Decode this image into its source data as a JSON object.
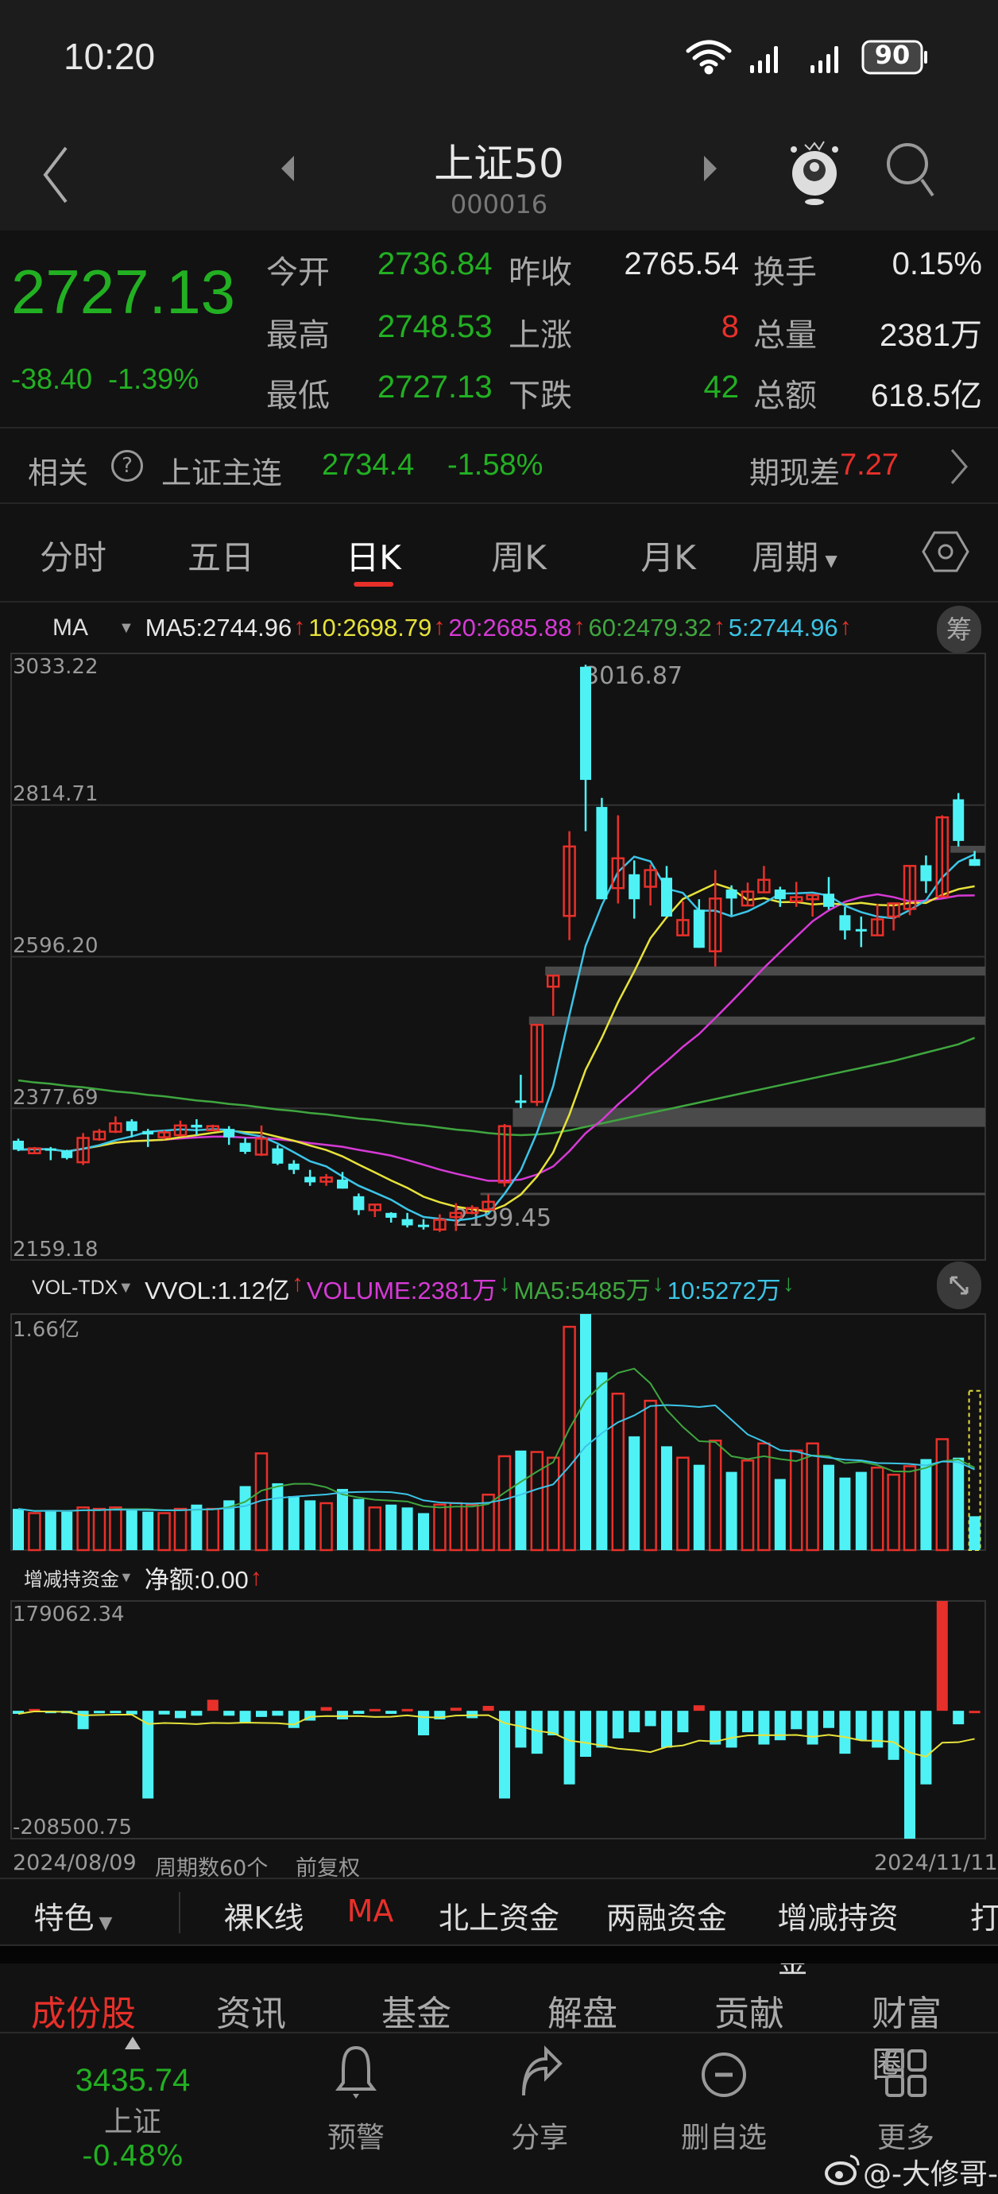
{
  "status": {
    "time": "10:20",
    "battery": "90"
  },
  "header": {
    "title": "上证50",
    "code": "000016"
  },
  "quote": {
    "price": "2727.13",
    "change": "-38.40",
    "change_pct": "-1.39%",
    "stats": [
      {
        "label": "今开",
        "value": "2736.84",
        "tone": "green"
      },
      {
        "label": "昨收",
        "value": "2765.54",
        "tone": "white"
      },
      {
        "label": "换手",
        "value": "0.15%",
        "tone": "white"
      },
      {
        "label": "最高",
        "value": "2748.53",
        "tone": "green"
      },
      {
        "label": "上涨",
        "value": "8",
        "tone": "red"
      },
      {
        "label": "总量",
        "value": "2381万",
        "tone": "white"
      },
      {
        "label": "最低",
        "value": "2727.13",
        "tone": "green"
      },
      {
        "label": "下跌",
        "value": "42",
        "tone": "green"
      },
      {
        "label": "总额",
        "value": "618.5亿",
        "tone": "white"
      }
    ]
  },
  "related": {
    "label": "相关",
    "name": "上证主连",
    "price": "2734.4",
    "pct": "-1.58%",
    "basis_label": "期现差",
    "basis": "7.27"
  },
  "tabs": {
    "items": [
      "分时",
      "五日",
      "日K",
      "周K",
      "月K",
      "周期"
    ],
    "active": "日K"
  },
  "ma_legend": {
    "selector": "MA",
    "items": [
      {
        "text": "MA5:2744.96",
        "color": "#e8e8e8",
        "trend": "↑"
      },
      {
        "text": "10:2698.79",
        "color": "#e6e23a",
        "trend": "↑"
      },
      {
        "text": "20:2685.88",
        "color": "#d63ad6",
        "trend": "↑"
      },
      {
        "text": "60:2479.32",
        "color": "#3fa63f",
        "trend": "↑"
      },
      {
        "text": "5:2744.96",
        "color": "#3cc4e6",
        "trend": "↑"
      }
    ],
    "chip": "筹"
  },
  "vol_legend": {
    "selector": "VOL-TDX",
    "items": [
      {
        "text": "VVOL:1.12亿",
        "color": "#e8e8e8",
        "trend": "↑",
        "trend_color": "#e8302a"
      },
      {
        "text": "VOLUME:2381万",
        "color": "#d63ad6",
        "trend": "↓",
        "trend_color": "#2ea043"
      },
      {
        "text": "MA5:5485万",
        "color": "#3fa63f",
        "trend": "↓",
        "trend_color": "#2ea043"
      },
      {
        "text": "10:5272万",
        "color": "#3cc4e6",
        "trend": "↓",
        "trend_color": "#2ea043"
      }
    ]
  },
  "funds_legend": {
    "selector": "增减持资金",
    "net": "净额:0.00",
    "trend": "↑"
  },
  "footer_info": {
    "start_date": "2024/08/09",
    "periods": "周期数60个",
    "adjust": "前复权",
    "end_date": "2024/11/11"
  },
  "indicator_bar": {
    "menu": "特色",
    "items": [
      "裸K线",
      "MA",
      "北上资金",
      "两融资金",
      "增减持资金",
      "打"
    ],
    "active": "MA"
  },
  "bottom_tabs": {
    "items": [
      "成份股",
      "资讯",
      "基金",
      "解盘",
      "贡献",
      "财富圈"
    ],
    "active": "成份股"
  },
  "bottom_nav": {
    "index_value": "3435.74",
    "index_name": "上证",
    "index_pct": "-0.48%",
    "items": [
      {
        "label": "预警",
        "icon": "bell-icon"
      },
      {
        "label": "分享",
        "icon": "share-icon"
      },
      {
        "label": "删自选",
        "icon": "remove-watchlist-icon"
      },
      {
        "label": "更多",
        "icon": "grid-more-icon"
      }
    ]
  },
  "watermark": "@-大修哥-",
  "colors": {
    "up": "#e8302a",
    "down": "#4ef2f5",
    "green": "#22b022",
    "ma10": "#e6e23a",
    "ma20": "#d63ad6",
    "ma60": "#3fa63f",
    "ma5": "#3cc4e6"
  },
  "chart_data": [
    {
      "type": "candlestick",
      "ylim": [
        2159.18,
        3033.22
      ],
      "yticks": [
        "3033.22",
        "2814.71",
        "2596.20",
        "2377.69",
        "2159.18"
      ],
      "max_label": "3016.87",
      "min_label": "2199.45",
      "ohlc": [
        [
          2331,
          2334,
          2316,
          2318
        ],
        [
          2313,
          2322,
          2312,
          2320
        ],
        [
          2320,
          2322,
          2303,
          2318
        ],
        [
          2317,
          2318,
          2304,
          2306
        ],
        [
          2300,
          2342,
          2296,
          2335
        ],
        [
          2333,
          2348,
          2331,
          2344
        ],
        [
          2344,
          2366,
          2342,
          2356
        ],
        [
          2359,
          2362,
          2336,
          2345
        ],
        [
          2345,
          2348,
          2322,
          2340
        ],
        [
          2336,
          2346,
          2333,
          2343
        ],
        [
          2339,
          2360,
          2337,
          2353
        ],
        [
          2354,
          2362,
          2339,
          2350
        ],
        [
          2346,
          2354,
          2345,
          2352
        ],
        [
          2348,
          2352,
          2325,
          2336
        ],
        [
          2328,
          2335,
          2312,
          2315
        ],
        [
          2311,
          2353,
          2309,
          2334
        ],
        [
          2320,
          2325,
          2296,
          2298
        ],
        [
          2298,
          2303,
          2283,
          2289
        ],
        [
          2279,
          2289,
          2266,
          2271
        ],
        [
          2272,
          2283,
          2266,
          2278
        ],
        [
          2275,
          2286,
          2262,
          2262
        ],
        [
          2251,
          2255,
          2224,
          2231
        ],
        [
          2231,
          2240,
          2221,
          2239
        ],
        [
          2227,
          2228,
          2213,
          2220
        ],
        [
          2218,
          2227,
          2206,
          2209
        ],
        [
          2210,
          2218,
          2203,
          2207
        ],
        [
          2203,
          2225,
          2199.45,
          2217
        ],
        [
          2221,
          2241,
          2201,
          2227
        ],
        [
          2227,
          2238,
          2225,
          2234
        ],
        [
          2232,
          2254,
          2231,
          2243
        ],
        [
          2271,
          2355,
          2265,
          2352
        ],
        [
          2389,
          2426,
          2378,
          2386
        ],
        [
          2387,
          2498,
          2381,
          2498
        ],
        [
          2553,
          2569,
          2511,
          2569
        ],
        [
          2655,
          2777,
          2620,
          2755
        ],
        [
          3014,
          3016.87,
          2777,
          2851
        ],
        [
          2812,
          2825,
          2679,
          2679
        ],
        [
          2695,
          2800,
          2673,
          2738
        ],
        [
          2715,
          2735,
          2651,
          2679
        ],
        [
          2697,
          2729,
          2670,
          2721
        ],
        [
          2710,
          2727,
          2654,
          2654
        ],
        [
          2627,
          2676,
          2627,
          2649
        ],
        [
          2664,
          2679,
          2609,
          2609
        ],
        [
          2604,
          2721,
          2582,
          2680
        ],
        [
          2693,
          2699,
          2656,
          2680
        ],
        [
          2670,
          2703,
          2670,
          2690
        ],
        [
          2689,
          2727,
          2689,
          2707
        ],
        [
          2693,
          2697,
          2668,
          2679
        ],
        [
          2676,
          2704,
          2668,
          2682
        ],
        [
          2679,
          2685,
          2654,
          2685
        ],
        [
          2687,
          2711,
          2664,
          2668
        ],
        [
          2656,
          2668,
          2621,
          2634
        ],
        [
          2636,
          2654,
          2610,
          2633
        ],
        [
          2627,
          2672,
          2627,
          2650
        ],
        [
          2654,
          2673,
          2634,
          2673
        ],
        [
          2665,
          2727,
          2656,
          2727
        ],
        [
          2728,
          2742,
          2688,
          2705
        ],
        [
          2683,
          2800,
          2683,
          2797
        ],
        [
          2823,
          2832,
          2755,
          2763
        ],
        [
          2736.84,
          2748.53,
          2727.13,
          2727.13
        ]
      ],
      "ma60": [
        2418,
        2415,
        2413,
        2410,
        2408,
        2405,
        2402,
        2400,
        2397,
        2395,
        2392,
        2389,
        2387,
        2384,
        2382,
        2379,
        2376,
        2374,
        2371,
        2369,
        2366,
        2363,
        2361,
        2358,
        2355,
        2353,
        2350,
        2347,
        2345,
        2342,
        2340,
        2339,
        2340,
        2342,
        2346,
        2351,
        2356,
        2361,
        2366,
        2371,
        2376,
        2381,
        2386,
        2391,
        2396,
        2401,
        2406,
        2411,
        2416,
        2421,
        2426,
        2431,
        2436,
        2441,
        2446,
        2452,
        2458,
        2464,
        2470,
        2479.32
      ],
      "zones": [
        [
          2569,
          2582,
          33
        ],
        [
          2498,
          2510,
          32
        ],
        [
          2351,
          2378,
          31
        ],
        [
          2746,
          2756,
          58
        ],
        [
          2254,
          2256,
          29
        ]
      ]
    },
    {
      "type": "bar",
      "unit": "万",
      "ymax_label": "1.66亿",
      "ylim": [
        0,
        16600
      ],
      "values": [
        2900,
        2600,
        2800,
        2700,
        3000,
        2900,
        3000,
        2800,
        2700,
        2600,
        2900,
        3200,
        2900,
        3500,
        4500,
        6800,
        4700,
        3800,
        3500,
        3300,
        4300,
        3600,
        3000,
        3200,
        3000,
        2600,
        3200,
        3300,
        3200,
        3900,
        6600,
        7000,
        6900,
        6500,
        15700,
        16600,
        12500,
        11000,
        8000,
        10500,
        7300,
        6500,
        6000,
        7700,
        5500,
        6300,
        7500,
        5000,
        7000,
        7500,
        6000,
        5100,
        5500,
        5800,
        5300,
        5900,
        6400,
        7800,
        6500,
        2381
      ],
      "projected_last": 11200
    },
    {
      "type": "bar",
      "ylim": [
        -208500.75,
        179062.34
      ],
      "yticks": [
        "179062.34",
        "-208500.75"
      ],
      "values": [
        -5000,
        3000,
        -2000,
        -3000,
        -30000,
        -4000,
        -3000,
        -6000,
        -143000,
        -6000,
        -12000,
        -8000,
        18000,
        -8000,
        -20000,
        -10000,
        -8000,
        -28000,
        -16000,
        6000,
        -14000,
        -5000,
        3000,
        -5000,
        3000,
        -40000,
        -14000,
        5000,
        -12000,
        8000,
        -143000,
        -60000,
        -70000,
        -40000,
        -120000,
        -75000,
        -60000,
        -45000,
        -35000,
        -25000,
        -60000,
        -35000,
        9000,
        -55000,
        -60000,
        -35000,
        -55000,
        -48000,
        -30000,
        -55000,
        -28000,
        -70000,
        -48000,
        -60000,
        -80000,
        -208500,
        -120000,
        179062,
        -22000,
        0
      ]
    }
  ]
}
